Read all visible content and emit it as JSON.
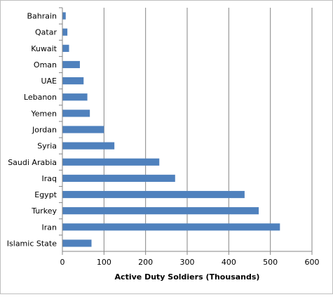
{
  "chart_data": {
    "type": "bar",
    "orientation": "horizontal",
    "categories": [
      "Bahrain",
      "Qatar",
      "Kuwait",
      "Oman",
      "UAE",
      "Lebanon",
      "Yemen",
      "Jordan",
      "Syria",
      "Saudi Arabia",
      "Iraq",
      "Egypt",
      "Turkey",
      "Iran",
      "Islamic State"
    ],
    "values": [
      8,
      12,
      16,
      42,
      51,
      60,
      66,
      100,
      125,
      233,
      271,
      438,
      472,
      523,
      70
    ],
    "xlabel": "Active Duty Soldiers (Thousands)",
    "ylabel": "",
    "xlim": [
      0,
      600
    ],
    "xticks": [
      0,
      100,
      200,
      300,
      400,
      500,
      600
    ],
    "grid": "vertical",
    "legend": "none",
    "bar_color": "#4f81bd",
    "grid_color": "#868686"
  }
}
